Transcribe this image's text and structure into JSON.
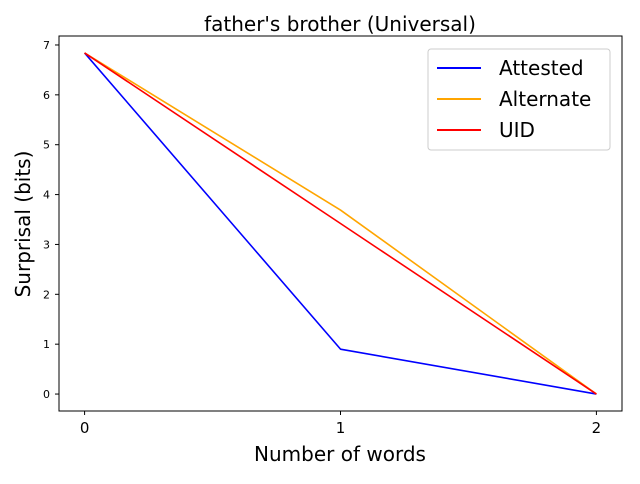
{
  "chart_data": {
    "type": "line",
    "title": "father's brother (Universal)",
    "xlabel": "Number of words",
    "ylabel": "Surprisal (bits)",
    "x": [
      0,
      1,
      2
    ],
    "xticks": [
      "0",
      "1",
      "2"
    ],
    "yticks": [
      "0",
      "1",
      "2",
      "3",
      "4",
      "5",
      "6",
      "7"
    ],
    "xlim": [
      -0.1,
      2.1
    ],
    "ylim": [
      -0.34,
      7.18
    ],
    "grid": false,
    "legend_position": "top-right",
    "series": [
      {
        "name": "Attested",
        "color": "#0000ff",
        "values": [
          6.84,
          0.9,
          0.0
        ]
      },
      {
        "name": "Alternate",
        "color": "#ffa500",
        "values": [
          6.84,
          3.69,
          0.0
        ]
      },
      {
        "name": "UID",
        "color": "#ff0000",
        "values": [
          6.84,
          3.42,
          0.0
        ]
      }
    ]
  }
}
